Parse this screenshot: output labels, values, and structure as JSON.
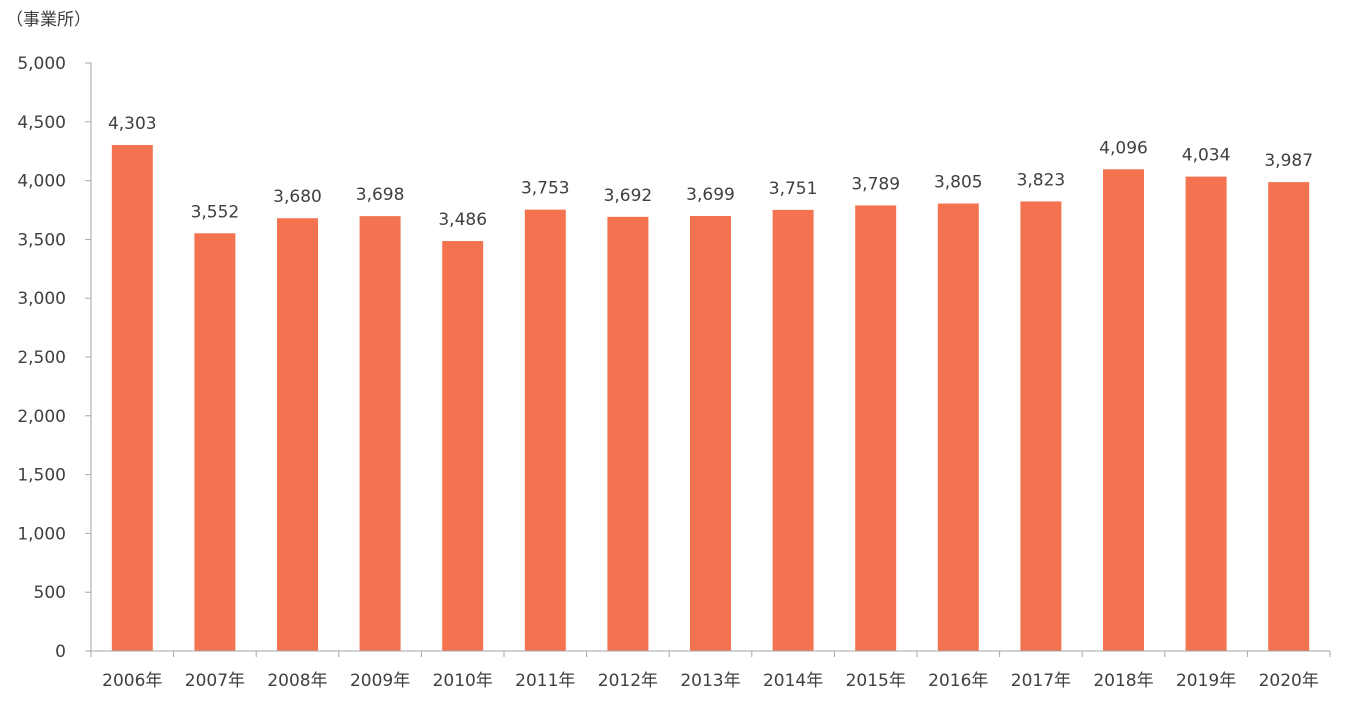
{
  "chart_data": {
    "type": "bar",
    "ylabel": "（事業所）",
    "categories": [
      "2006年",
      "2007年",
      "2008年",
      "2009年",
      "2010年",
      "2011年",
      "2012年",
      "2013年",
      "2014年",
      "2015年",
      "2016年",
      "2017年",
      "2018年",
      "2019年",
      "2020年"
    ],
    "values": [
      4303,
      3552,
      3680,
      3698,
      3486,
      3753,
      3692,
      3699,
      3751,
      3789,
      3805,
      3823,
      4096,
      4034,
      3987
    ],
    "data_labels": [
      "4,303",
      "3,552",
      "3,680",
      "3,698",
      "3,486",
      "3,753",
      "3,692",
      "3,699",
      "3,751",
      "3,789",
      "3,805",
      "3,823",
      "4,096",
      "4,034",
      "3,987"
    ],
    "ylim": [
      0,
      5000
    ],
    "yticks": [
      0,
      500,
      1000,
      1500,
      2000,
      2500,
      3000,
      3500,
      4000,
      4500,
      5000
    ],
    "ytick_labels": [
      "0",
      "500",
      "1,000",
      "1,500",
      "2,000",
      "2,500",
      "3,000",
      "3,500",
      "4,000",
      "4,500",
      "5,000"
    ],
    "grid": false,
    "bar_color": "#F37350",
    "axis_color": "#A6A6A6"
  }
}
